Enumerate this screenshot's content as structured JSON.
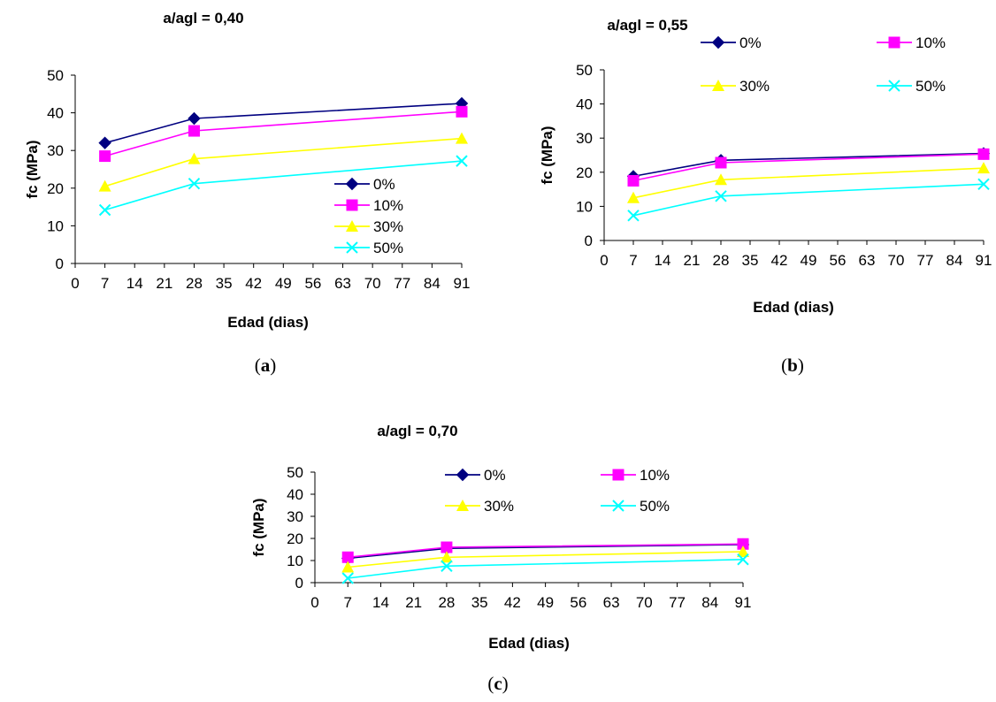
{
  "series_style": [
    {
      "color": "#000080",
      "marker": "diamond"
    },
    {
      "color": "#FF00FF",
      "marker": "square"
    },
    {
      "color": "#FFFF00",
      "marker": "triangle"
    },
    {
      "color": "#00FFFF",
      "marker": "x"
    }
  ],
  "chart_data": [
    {
      "type": "line",
      "title": "a/agl = 0,40",
      "xlabel": "Edad (dias)",
      "ylabel": "fc (MPa)",
      "xlim": [
        0,
        91
      ],
      "ylim": [
        0,
        50
      ],
      "xticks": [
        "0",
        "7",
        "14",
        "21",
        "28",
        "35",
        "42",
        "49",
        "56",
        "63",
        "70",
        "77",
        "84",
        "91"
      ],
      "yticks": [
        "0",
        "10",
        "20",
        "30",
        "40",
        "50"
      ],
      "legend": "right",
      "x": [
        7,
        28,
        91
      ],
      "series": [
        {
          "name": "0%",
          "values": [
            32,
            38.5,
            42.5
          ]
        },
        {
          "name": "10%",
          "values": [
            28.5,
            35.2,
            40.3
          ]
        },
        {
          "name": "30%",
          "values": [
            20.5,
            27.8,
            33.2
          ]
        },
        {
          "name": "50%",
          "values": [
            14.2,
            21.2,
            27.2
          ]
        }
      ],
      "panel_label": "a"
    },
    {
      "type": "line",
      "title": "a/agl = 0,55",
      "xlabel": "Edad (dias)",
      "ylabel": "fc (MPa)",
      "xlim": [
        0,
        91
      ],
      "ylim": [
        0,
        50
      ],
      "xticks": [
        "0",
        "7",
        "14",
        "21",
        "28",
        "35",
        "42",
        "49",
        "56",
        "63",
        "70",
        "77",
        "84",
        "91"
      ],
      "yticks": [
        "0",
        "10",
        "20",
        "30",
        "40",
        "50"
      ],
      "legend": "top",
      "x": [
        7,
        28,
        91
      ],
      "series": [
        {
          "name": "0%",
          "values": [
            18.8,
            23.5,
            25.5
          ]
        },
        {
          "name": "10%",
          "values": [
            17.5,
            22.8,
            25.3
          ]
        },
        {
          "name": "30%",
          "values": [
            12.5,
            17.8,
            21.2
          ]
        },
        {
          "name": "50%",
          "values": [
            7.3,
            13.0,
            16.5
          ]
        }
      ],
      "panel_label": "b"
    },
    {
      "type": "line",
      "title": "a/agl = 0,70",
      "xlabel": "Edad (dias)",
      "ylabel": "fc (MPa)",
      "xlim": [
        0,
        91
      ],
      "ylim": [
        0,
        50
      ],
      "xticks": [
        "0",
        "7",
        "14",
        "21",
        "28",
        "35",
        "42",
        "49",
        "56",
        "63",
        "70",
        "77",
        "84",
        "91"
      ],
      "yticks": [
        "0",
        "10",
        "20",
        "30",
        "40",
        "50"
      ],
      "legend": "top",
      "x": [
        7,
        28,
        91
      ],
      "series": [
        {
          "name": "0%",
          "values": [
            11.0,
            15.5,
            17.2
          ]
        },
        {
          "name": "10%",
          "values": [
            11.5,
            16.0,
            17.5
          ]
        },
        {
          "name": "30%",
          "values": [
            7.0,
            11.5,
            14.0
          ]
        },
        {
          "name": "50%",
          "values": [
            2.0,
            7.5,
            10.5
          ]
        }
      ],
      "panel_label": "c"
    }
  ]
}
